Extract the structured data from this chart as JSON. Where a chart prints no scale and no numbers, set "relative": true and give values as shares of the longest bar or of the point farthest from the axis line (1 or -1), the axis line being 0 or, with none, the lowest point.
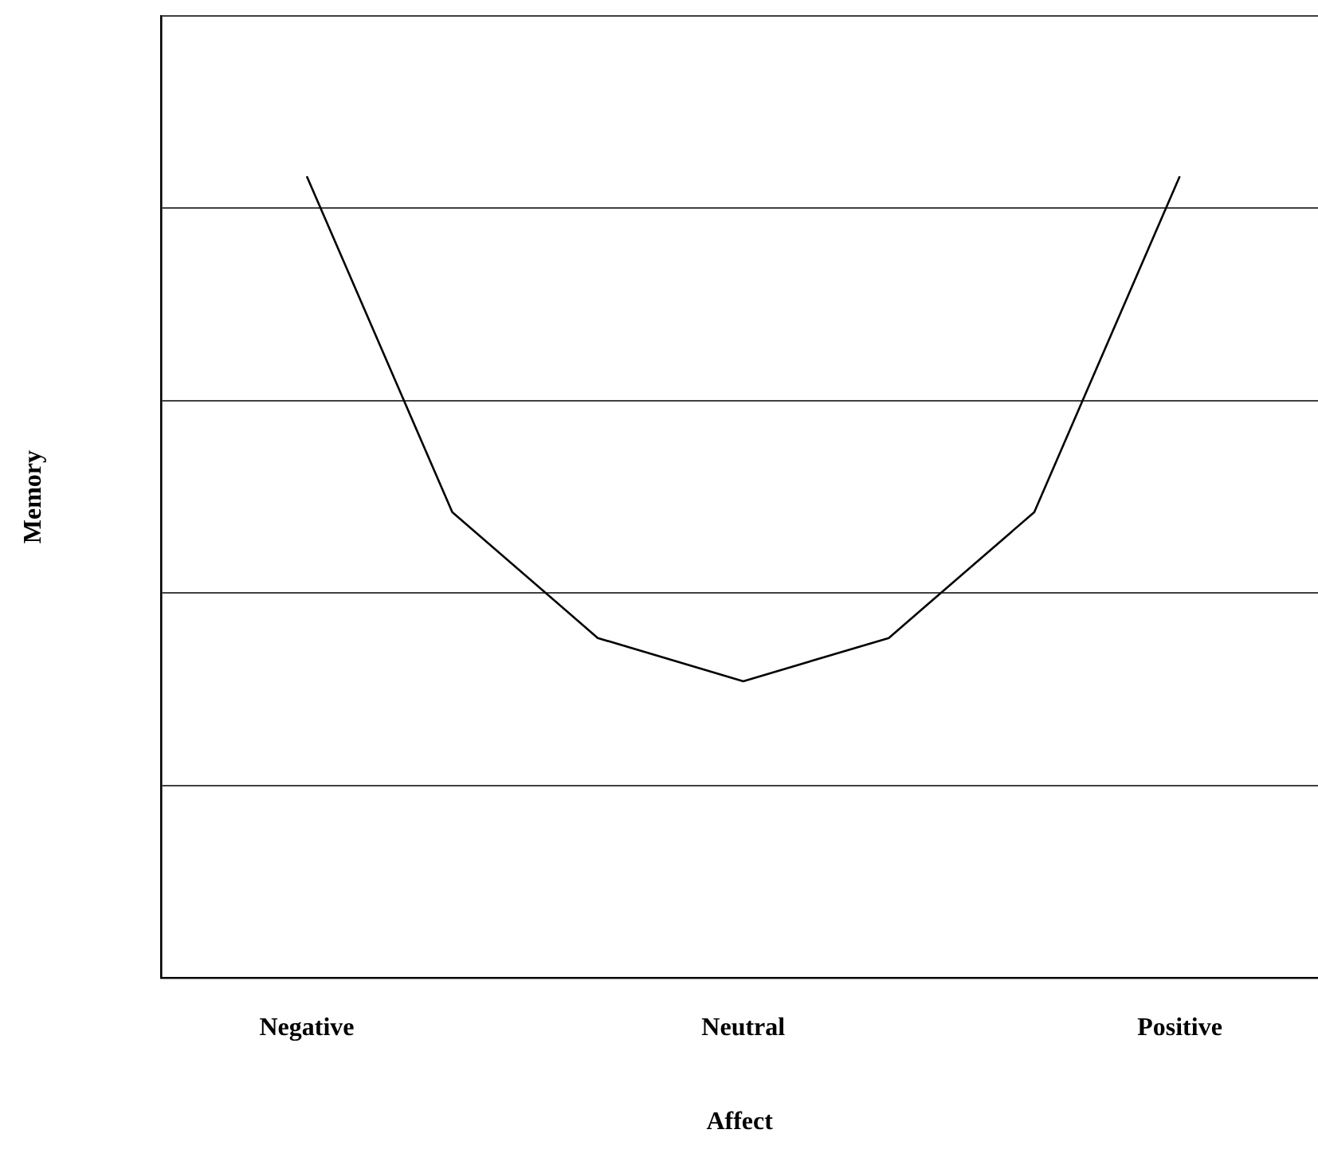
{
  "chart_data": {
    "type": "line",
    "xlabel": "Affect",
    "ylabel": "Memory",
    "categories": [
      "Negative",
      null,
      null,
      "Neutral",
      null,
      null,
      "Positive"
    ],
    "series": [
      {
        "color": "#000000",
        "values": [
          1,
          0.581,
          0.424,
          0.37,
          0.424,
          0.581,
          1
        ]
      }
    ],
    "relative": true,
    "grid": "y",
    "legend": false,
    "marker": "none",
    "line_style": "solid"
  }
}
